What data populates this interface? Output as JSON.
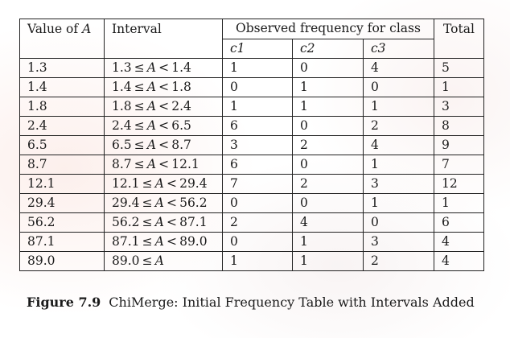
{
  "table": {
    "header": {
      "value_col": "Value of A",
      "interval_col": "Interval",
      "observed_col": "Observed frequency for class",
      "total_col": "Total",
      "classes": [
        "c1",
        "c2",
        "c3"
      ]
    },
    "rows": [
      {
        "value": "1.3",
        "interval": "1.3 ≤ A < 1.4",
        "c1": "1",
        "c2": "0",
        "c3": "4",
        "total": "5"
      },
      {
        "value": "1.4",
        "interval": "1.4 ≤ A < 1.8",
        "c1": "0",
        "c2": "1",
        "c3": "0",
        "total": "1"
      },
      {
        "value": "1.8",
        "interval": "1.8 ≤ A < 2.4",
        "c1": "1",
        "c2": "1",
        "c3": "1",
        "total": "3"
      },
      {
        "value": "2.4",
        "interval": "2.4 ≤ A < 6.5",
        "c1": "6",
        "c2": "0",
        "c3": "2",
        "total": "8"
      },
      {
        "value": "6.5",
        "interval": "6.5 ≤ A < 8.7",
        "c1": "3",
        "c2": "2",
        "c3": "4",
        "total": "9"
      },
      {
        "value": "8.7",
        "interval": "8.7 ≤ A < 12.1",
        "c1": "6",
        "c2": "0",
        "c3": "1",
        "total": "7"
      },
      {
        "value": "12.1",
        "interval": "12.1 ≤ A < 29.4",
        "c1": "7",
        "c2": "2",
        "c3": "3",
        "total": "12"
      },
      {
        "value": "29.4",
        "interval": "29.4 ≤ A < 56.2",
        "c1": "0",
        "c2": "0",
        "c3": "1",
        "total": "1"
      },
      {
        "value": "56.2",
        "interval": "56.2 ≤ A < 87.1",
        "c1": "2",
        "c2": "4",
        "c3": "0",
        "total": "6"
      },
      {
        "value": "87.1",
        "interval": "87.1 ≤ A < 89.0",
        "c1": "0",
        "c2": "1",
        "c3": "3",
        "total": "4"
      },
      {
        "value": "89.0",
        "interval": "89.0 ≤ A",
        "c1": "1",
        "c2": "1",
        "c3": "2",
        "total": "4"
      }
    ]
  },
  "caption": {
    "label": "Figure 7.9",
    "text": "ChiMerge: Initial Frequency Table with Intervals Added"
  }
}
